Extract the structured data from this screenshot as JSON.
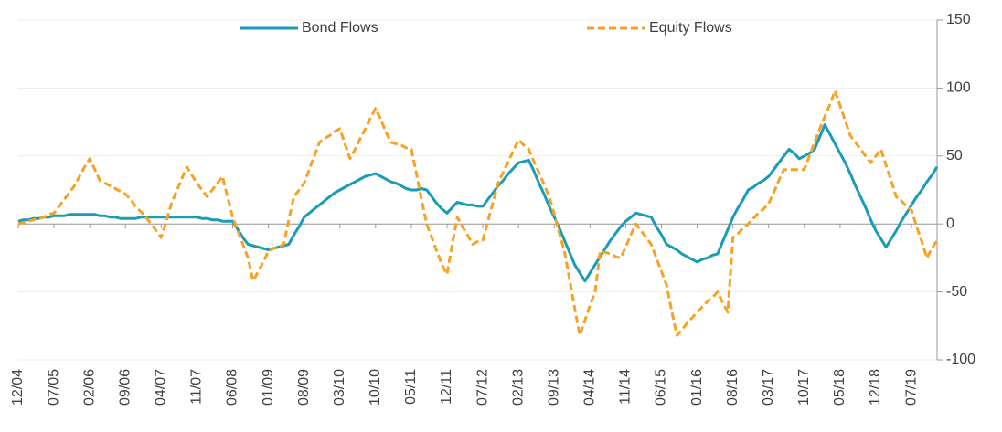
{
  "chart_data": {
    "type": "line",
    "categories": [
      "12/04",
      null,
      null,
      null,
      null,
      null,
      null,
      "07/05",
      null,
      null,
      null,
      null,
      null,
      null,
      "02/06",
      null,
      null,
      null,
      null,
      null,
      null,
      "09/06",
      null,
      null,
      null,
      null,
      null,
      null,
      "04/07",
      null,
      null,
      null,
      null,
      null,
      null,
      "11/07",
      null,
      null,
      null,
      null,
      null,
      null,
      "06/08",
      null,
      null,
      null,
      null,
      null,
      null,
      "01/09",
      null,
      null,
      null,
      null,
      null,
      null,
      "08/09",
      null,
      null,
      null,
      null,
      null,
      null,
      "03/10",
      null,
      null,
      null,
      null,
      null,
      null,
      "10/10",
      null,
      null,
      null,
      null,
      null,
      null,
      "05/11",
      null,
      null,
      null,
      null,
      null,
      null,
      "12/11",
      null,
      null,
      null,
      null,
      null,
      null,
      "07/12",
      null,
      null,
      null,
      null,
      null,
      null,
      "02/13",
      null,
      null,
      null,
      null,
      null,
      null,
      "09/13",
      null,
      null,
      null,
      null,
      null,
      null,
      "04/14",
      null,
      null,
      null,
      null,
      null,
      null,
      "11/14",
      null,
      null,
      null,
      null,
      null,
      null,
      "06/15",
      null,
      null,
      null,
      null,
      null,
      null,
      "01/16",
      null,
      null,
      null,
      null,
      null,
      null,
      "08/16",
      null,
      null,
      null,
      null,
      null,
      null,
      "03/17",
      null,
      null,
      null,
      null,
      null,
      null,
      "10/17",
      null,
      null,
      null,
      null,
      null,
      null,
      "05/18",
      null,
      null,
      null,
      null,
      null,
      null,
      "12/18",
      null,
      null,
      null,
      null,
      null,
      null,
      "07/19",
      null,
      null,
      null,
      null,
      null
    ],
    "series": [
      {
        "name": "Bond Flows",
        "color": "#1b9cb6",
        "dashed": false,
        "values": [
          2,
          3,
          3,
          4,
          4,
          5,
          5,
          6,
          6,
          6,
          7,
          7,
          7,
          7,
          7,
          7,
          6,
          6,
          5,
          5,
          4,
          4,
          4,
          4,
          5,
          5,
          5,
          5,
          5,
          5,
          5,
          5,
          5,
          5,
          5,
          5,
          4,
          4,
          3,
          3,
          2,
          2,
          2,
          -4,
          -10,
          -15,
          -16,
          -17,
          -18,
          -19,
          -18,
          -17,
          -16,
          -15,
          -8,
          -2,
          5,
          8,
          11,
          14,
          17,
          20,
          23,
          25,
          27,
          29,
          31,
          33,
          35,
          36,
          37,
          35,
          33,
          31,
          30,
          28,
          26,
          25,
          25,
          26,
          25,
          20,
          15,
          11,
          8,
          12,
          16,
          15,
          14,
          14,
          13,
          13,
          18,
          23,
          28,
          32,
          37,
          41,
          45,
          46,
          47,
          39,
          30,
          22,
          13,
          5,
          -3,
          -12,
          -21,
          -30,
          -36,
          -42,
          -36,
          -30,
          -24,
          -18,
          -12,
          -7,
          -2,
          2,
          5,
          8,
          7,
          6,
          5,
          -2,
          -8,
          -15,
          -17,
          -19,
          -22,
          -24,
          -26,
          -28,
          -26,
          -25,
          -23,
          -22,
          -13,
          -4,
          5,
          12,
          18,
          25,
          27,
          30,
          32,
          35,
          40,
          45,
          50,
          55,
          52,
          48,
          50,
          52,
          55,
          64,
          73,
          66,
          59,
          52,
          45,
          37,
          28,
          20,
          12,
          3,
          -5,
          -11,
          -17,
          -11,
          -5,
          2,
          8,
          14,
          20,
          25,
          31,
          36,
          42
        ]
      },
      {
        "name": "Equity Flows",
        "color": "#f7a224",
        "dashed": true,
        "values": [
          0,
          1,
          2,
          3,
          4,
          5,
          7,
          8,
          13,
          18,
          23,
          28,
          35,
          42,
          48,
          40,
          32,
          30,
          28,
          26,
          24,
          22,
          18,
          13,
          9,
          5,
          0,
          -5,
          -10,
          2,
          15,
          24,
          33,
          42,
          36,
          30,
          25,
          20,
          25,
          30,
          35,
          20,
          5,
          -5,
          -15,
          -25,
          -42,
          -35,
          -28,
          -20,
          -18,
          -17,
          -15,
          3,
          20,
          25,
          30,
          40,
          50,
          60,
          63,
          65,
          68,
          70,
          59,
          48,
          55,
          63,
          70,
          78,
          85,
          77,
          68,
          60,
          59,
          58,
          56,
          55,
          37,
          18,
          0,
          -10,
          -20,
          -30,
          -37,
          -15,
          5,
          -2,
          -8,
          -15,
          -13,
          -12,
          2,
          16,
          30,
          38,
          46,
          54,
          62,
          58,
          55,
          46,
          38,
          29,
          20,
          7,
          -7,
          -20,
          -41,
          -62,
          -82,
          -71,
          -60,
          -50,
          -20,
          -21,
          -22,
          -24,
          -25,
          -17,
          -8,
          0,
          -5,
          -10,
          -15,
          -25,
          -35,
          -45,
          -64,
          -82,
          -78,
          -73,
          -69,
          -65,
          -61,
          -57,
          -54,
          -50,
          -58,
          -65,
          -10,
          -7,
          -3,
          0,
          4,
          8,
          11,
          15,
          23,
          32,
          40,
          40,
          40,
          40,
          40,
          50,
          60,
          70,
          79,
          88,
          98,
          87,
          76,
          65,
          60,
          55,
          50,
          45,
          50,
          55,
          43,
          32,
          20,
          17,
          13,
          10,
          -2,
          -13,
          -25,
          -18,
          -12
        ]
      }
    ],
    "ylim": [
      -100,
      150
    ],
    "yticks": [
      150,
      100,
      50,
      0,
      -50,
      -100
    ],
    "grid": true,
    "legend": "top"
  }
}
